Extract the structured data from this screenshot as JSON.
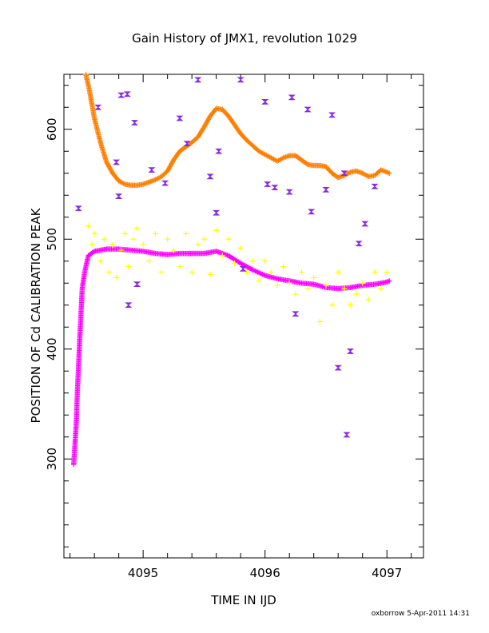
{
  "chart_data": {
    "type": "scatter",
    "title": "Gain History of JMX1, revolution 1029",
    "xlabel": "TIME IN IJD",
    "ylabel": "POSITION OF Cd CALIBRATION PEAK",
    "footer": "oxborrow  5-Apr-2011 14:31",
    "xlim": [
      4094.35,
      4097.3
    ],
    "ylim": [
      210,
      650
    ],
    "x_ticks": [
      4095,
      4096,
      4097
    ],
    "x_tick_labels": [
      "4095",
      "4096",
      "4097"
    ],
    "y_ticks": [
      300,
      400,
      500,
      600
    ],
    "y_tick_labels": [
      "300",
      "400",
      "500",
      "600"
    ],
    "grid": false,
    "legend": "none",
    "colors": {
      "orange": "#ff7f00",
      "magenta": "#ff00ff",
      "yellow": "#ffff00",
      "purple": "#8a2be2",
      "axis": "#000000"
    },
    "series": [
      {
        "color": "#ff7f00",
        "marker": "plus-dense",
        "x": [
          4094.53,
          4094.56,
          4094.6,
          4094.65,
          4094.7,
          4094.75,
          4094.8,
          4094.85,
          4094.9,
          4094.95,
          4095.0,
          4095.05,
          4095.1,
          4095.15,
          4095.2,
          4095.25,
          4095.3,
          4095.35,
          4095.4,
          4095.45,
          4095.5,
          4095.55,
          4095.6,
          4095.65,
          4095.7,
          4095.75,
          4095.8,
          4095.85,
          4095.9,
          4095.95,
          4096.0,
          4096.05,
          4096.1,
          4096.15,
          4096.2,
          4096.25,
          4096.3,
          4096.35,
          4096.4,
          4096.45,
          4096.5,
          4096.55,
          4096.6,
          4096.65,
          4096.7,
          4096.75,
          4096.8,
          4096.85,
          4096.9,
          4096.95,
          4097.0,
          4097.02
        ],
        "y": [
          650,
          635,
          610,
          588,
          570,
          560,
          553,
          550,
          549,
          549,
          550,
          552,
          554,
          557,
          562,
          572,
          580,
          584,
          588,
          593,
          602,
          612,
          619,
          618,
          612,
          604,
          596,
          590,
          585,
          580,
          577,
          574,
          571,
          574,
          576,
          576,
          572,
          568,
          567,
          567,
          566,
          560,
          556,
          558,
          561,
          562,
          560,
          557,
          558,
          563,
          561,
          560
        ]
      },
      {
        "color": "#ff00ff",
        "marker": "plus-dense",
        "x": [
          4094.43,
          4094.45,
          4094.46,
          4094.47,
          4094.48,
          4094.49,
          4094.5,
          4094.52,
          4094.55,
          4094.6,
          4094.65,
          4094.7,
          4094.8,
          4094.9,
          4095.0,
          4095.1,
          4095.2,
          4095.3,
          4095.4,
          4095.5,
          4095.6,
          4095.7,
          4095.8,
          4095.9,
          4096.0,
          4096.1,
          4096.2,
          4096.3,
          4096.4,
          4096.5,
          4096.6,
          4096.7,
          4096.8,
          4096.9,
          4097.0,
          4097.02
        ],
        "y": [
          295,
          330,
          360,
          385,
          410,
          432,
          455,
          470,
          485,
          489,
          490,
          491,
          491,
          490,
          489,
          487,
          486,
          487,
          487,
          487,
          489,
          485,
          478,
          472,
          467,
          464,
          462,
          460,
          459,
          456,
          455,
          456,
          458,
          459,
          461,
          462
        ]
      },
      {
        "color": "#ffff00",
        "marker": "plus",
        "x": [
          4094.55,
          4094.58,
          4094.6,
          4094.65,
          4094.68,
          4094.72,
          4094.75,
          4094.78,
          4094.82,
          4094.85,
          4094.88,
          4094.92,
          4094.95,
          4095.0,
          4095.05,
          4095.1,
          4095.15,
          4095.2,
          4095.25,
          4095.3,
          4095.35,
          4095.4,
          4095.45,
          4095.5,
          4095.55,
          4095.6,
          4095.65,
          4095.7,
          4095.75,
          4095.8,
          4095.85,
          4095.9,
          4095.95,
          4096.0,
          4096.05,
          4096.1,
          4096.15,
          4096.2,
          4096.25,
          4096.3,
          4096.35,
          4096.4,
          4096.45,
          4096.5,
          4096.55,
          4096.6,
          4096.65,
          4096.7,
          4096.75,
          4096.8,
          4096.85,
          4096.9,
          4096.95,
          4097.0
        ],
        "y": [
          512,
          495,
          505,
          480,
          500,
          470,
          495,
          465,
          490,
          505,
          475,
          500,
          510,
          495,
          480,
          505,
          470,
          500,
          490,
          475,
          505,
          470,
          495,
          500,
          468,
          508,
          485,
          500,
          478,
          492,
          470,
          480,
          462,
          480,
          470,
          458,
          475,
          460,
          450,
          470,
          455,
          465,
          425,
          458,
          440,
          470,
          455,
          440,
          450,
          460,
          445,
          470,
          455,
          470
        ]
      },
      {
        "color": "#8a2be2",
        "marker": "hourglass",
        "x": [
          4094.47,
          4094.63,
          4094.78,
          4094.8,
          4094.82,
          4094.87,
          4094.88,
          4094.93,
          4094.95,
          4095.07,
          4095.18,
          4095.3,
          4095.36,
          4095.45,
          4095.55,
          4095.6,
          4095.62,
          4095.8,
          4095.82,
          4096.0,
          4096.02,
          4096.08,
          4096.2,
          4096.22,
          4096.25,
          4096.35,
          4096.38,
          4096.5,
          4096.55,
          4096.6,
          4096.65,
          4096.67,
          4096.7,
          4096.77,
          4096.82,
          4096.9
        ],
        "y": [
          528,
          620,
          570,
          539,
          631,
          632,
          440,
          606,
          459,
          563,
          551,
          610,
          587,
          645,
          557,
          524,
          580,
          645,
          473,
          625,
          550,
          547,
          543,
          629,
          432,
          618,
          525,
          545,
          613,
          383,
          560,
          322,
          398,
          496,
          514,
          548
        ]
      }
    ]
  }
}
